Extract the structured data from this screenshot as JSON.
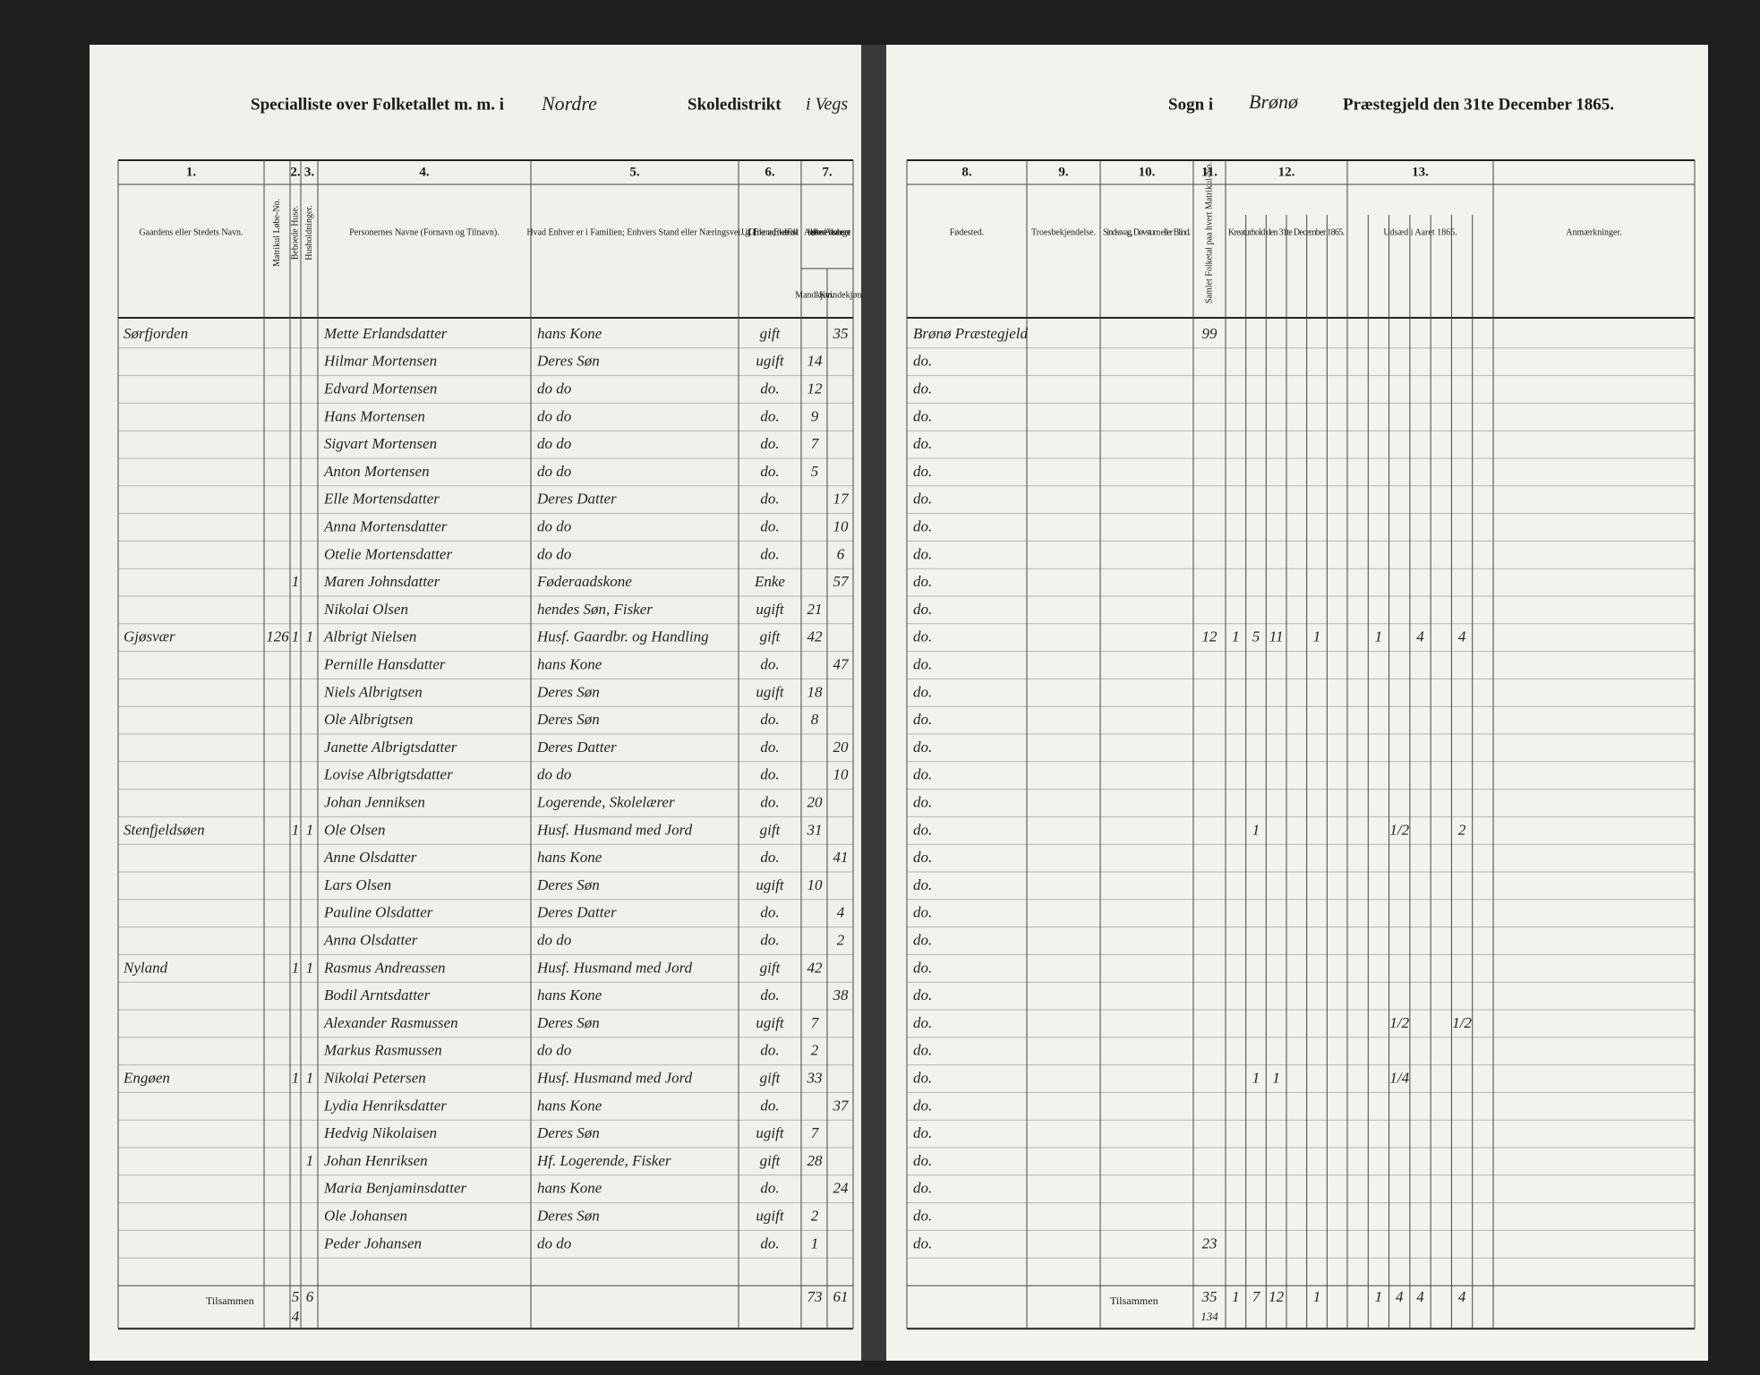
{
  "header": {
    "left_prefix": "Specialliste over Folketallet m. m. i",
    "district_name": "Nordre",
    "district_label": "Skoledistrikt",
    "district_place": "i Vegs",
    "parish_label": "Sogn i",
    "parish_name": "Brønø",
    "right_suffix": "Præstegjeld den 31te December 1865."
  },
  "columns": [
    {
      "no": "1.",
      "label": "Gaardens eller Stedets Navn."
    },
    {
      "no": "",
      "label": "Matrikul Løbe-No."
    },
    {
      "no": "2.",
      "label": "Beboede Huse."
    },
    {
      "no": "3.",
      "label": "Husholdninger."
    },
    {
      "no": "4.",
      "label": "Personernes Navne (Fornavn og Tilnavn)."
    },
    {
      "no": "5.",
      "label": "Hvad Enhver er i Familien; Enhvers Stand eller Næringsvei."
    },
    {
      "no": "6.",
      "label": "Ugift, Gift, Enkemand, Enke eller Fraskilt."
    },
    {
      "no": "7.",
      "label": "Alder, det løbende Aldersaar iberegnet."
    },
    {
      "no": "8.",
      "label": "Fødested."
    },
    {
      "no": "9.",
      "label": "Troesbekjendelse."
    },
    {
      "no": "10.",
      "label": "Sindssvag, Døvstum eller Blind."
    },
    {
      "no": "11.",
      "label": "Samlet Folketal paa hvert Matrikul-No."
    },
    {
      "no": "12.",
      "label": "Kreaturhold den 31te December 1865."
    },
    {
      "no": "13.",
      "label": "Udsæd i Aaret 1865."
    },
    {
      "no": "",
      "label": "Anmærkninger."
    }
  ],
  "age_labels": [
    "Mandkjøn.",
    "Kvindekjøn."
  ],
  "rows": [
    {
      "place": "Sørfjorden",
      "name": "Mette Erlandsdatter",
      "position": "hans Kone",
      "status": "gift",
      "age_female": 35,
      "birthplace": "Brønø Præstegjeld",
      "total": "99"
    },
    {
      "name": "Hilmar Mortensen",
      "position": "Deres Søn",
      "status": "ugift",
      "age_male": 14,
      "birthplace": "do."
    },
    {
      "name": "Edvard Mortensen",
      "position": "do do",
      "status": "do.",
      "age_male": 12,
      "birthplace": "do."
    },
    {
      "name": "Hans Mortensen",
      "position": "do do",
      "status": "do.",
      "age_male": 9,
      "birthplace": "do."
    },
    {
      "name": "Sigvart Mortensen",
      "position": "do do",
      "status": "do.",
      "age_male": 7,
      "birthplace": "do."
    },
    {
      "name": "Anton Mortensen",
      "position": "do do",
      "status": "do.",
      "age_male": 5,
      "birthplace": "do."
    },
    {
      "name": "Elle Mortensdatter",
      "position": "Deres Datter",
      "status": "do.",
      "age_female": 17,
      "birthplace": "do."
    },
    {
      "name": "Anna Mortensdatter",
      "position": "do do",
      "status": "do.",
      "age_female": 10,
      "birthplace": "do."
    },
    {
      "name": "Otelie Mortensdatter",
      "position": "do do",
      "status": "do.",
      "age_female": 6,
      "birthplace": "do."
    },
    {
      "house": "1",
      "name": "Maren Johnsdatter",
      "position": "Føderaadskone",
      "status": "Enke",
      "age_female": 57,
      "birthplace": "do."
    },
    {
      "name": "Nikolai Olsen",
      "position": "hendes Søn, Fisker",
      "status": "ugift",
      "age_male": 21,
      "birthplace": "do."
    },
    {
      "place": "Gjøsvær",
      "matrikel": "126",
      "house": "1",
      "household": "1",
      "name": "Albrigt Nielsen",
      "position": "Husf. Gaardbr. og Handling",
      "status": "gift",
      "age_male": 42,
      "birthplace": "do.",
      "total": "12",
      "livestock": [
        "1",
        "5",
        "11",
        null,
        "1",
        null,
        null,
        "1",
        null,
        "4",
        null,
        "4",
        null
      ]
    },
    {
      "name": "Pernille Hansdatter",
      "position": "hans Kone",
      "status": "do.",
      "age_female": 47,
      "birthplace": "do."
    },
    {
      "name": "Niels Albrigtsen",
      "position": "Deres Søn",
      "status": "ugift",
      "age_male": 18,
      "birthplace": "do."
    },
    {
      "name": "Ole Albrigtsen",
      "position": "Deres Søn",
      "status": "do.",
      "age_male": 8,
      "birthplace": "do."
    },
    {
      "name": "Janette Albrigtsdatter",
      "position": "Deres Datter",
      "status": "do.",
      "age_female": 20,
      "birthplace": "do."
    },
    {
      "name": "Lovise Albrigtsdatter",
      "position": "do do",
      "status": "do.",
      "age_female": 10,
      "birthplace": "do."
    },
    {
      "name": "Johan Jenniksen",
      "position": "Logerende, Skolelærer",
      "status": "do.",
      "age_male": 20,
      "birthplace": "do."
    },
    {
      "place": "Stenfjeldsøen",
      "house": "1",
      "household": "1",
      "name": "Ole Olsen",
      "position": "Husf. Husmand med Jord",
      "status": "gift",
      "age_male": 31,
      "birthplace": "do.",
      "livestock": [
        null,
        "1",
        null,
        null,
        null,
        null,
        null,
        null,
        "1/2",
        null,
        null,
        "2",
        null
      ]
    },
    {
      "name": "Anne Olsdatter",
      "position": "hans Kone",
      "status": "do.",
      "age_female": 41,
      "birthplace": "do."
    },
    {
      "name": "Lars Olsen",
      "position": "Deres Søn",
      "status": "ugift",
      "age_male": 10,
      "birthplace": "do."
    },
    {
      "name": "Pauline Olsdatter",
      "position": "Deres Datter",
      "status": "do.",
      "age_female": 4,
      "birthplace": "do."
    },
    {
      "name": "Anna Olsdatter",
      "position": "do do",
      "status": "do.",
      "age_female": 2,
      "birthplace": "do."
    },
    {
      "place": "Nyland",
      "house": "1",
      "household": "1",
      "name": "Rasmus Andreassen",
      "position": "Husf. Husmand med Jord",
      "status": "gift",
      "age_male": 42,
      "birthplace": "do."
    },
    {
      "name": "Bodil Arntsdatter",
      "position": "hans Kone",
      "status": "do.",
      "age_female": 38,
      "birthplace": "do."
    },
    {
      "name": "Alexander Rasmussen",
      "position": "Deres Søn",
      "status": "ugift",
      "age_male": 7,
      "birthplace": "do.",
      "livestock": [
        null,
        null,
        null,
        null,
        null,
        null,
        null,
        null,
        "1/2",
        null,
        null,
        "1/2",
        null
      ]
    },
    {
      "name": "Markus Rasmussen",
      "position": "do do",
      "status": "do.",
      "age_male": 2,
      "birthplace": "do."
    },
    {
      "place": "Engøen",
      "house": "1",
      "household": "1",
      "name": "Nikolai Petersen",
      "position": "Husf. Husmand med Jord",
      "status": "gift",
      "age_male": 33,
      "birthplace": "do.",
      "livestock": [
        null,
        "1",
        "1",
        null,
        null,
        null,
        null,
        null,
        "1/4",
        null,
        null,
        null,
        null
      ]
    },
    {
      "name": "Lydia Henriksdatter",
      "position": "hans Kone",
      "status": "do.",
      "age_female": 37,
      "birthplace": "do."
    },
    {
      "name": "Hedvig Nikolaisen",
      "position": "Deres Søn",
      "status": "ugift",
      "age_male": 7,
      "birthplace": "do."
    },
    {
      "household": "1",
      "name": "Johan Henriksen",
      "position": "Hf. Logerende, Fisker",
      "status": "gift",
      "age_male": 28,
      "birthplace": "do."
    },
    {
      "name": "Maria Benjaminsdatter",
      "position": "hans Kone",
      "status": "do.",
      "age_female": 24,
      "birthplace": "do."
    },
    {
      "name": "Ole Johansen",
      "position": "Deres Søn",
      "status": "ugift",
      "age_male": 2,
      "birthplace": "do."
    },
    {
      "name": "Peder Johansen",
      "position": "do do",
      "status": "do.",
      "age_male": 1,
      "birthplace": "do.",
      "total": "23"
    }
  ],
  "totals": {
    "label": "Tilsammen",
    "house": "5",
    "house_b": "4",
    "household": "6",
    "age_male": 73,
    "age_female": 61,
    "total": "35",
    "total_b": "134",
    "livestock": [
      "1",
      "7",
      "12",
      null,
      "1",
      null,
      null,
      "1",
      "4",
      "4",
      null,
      "4",
      null
    ]
  }
}
